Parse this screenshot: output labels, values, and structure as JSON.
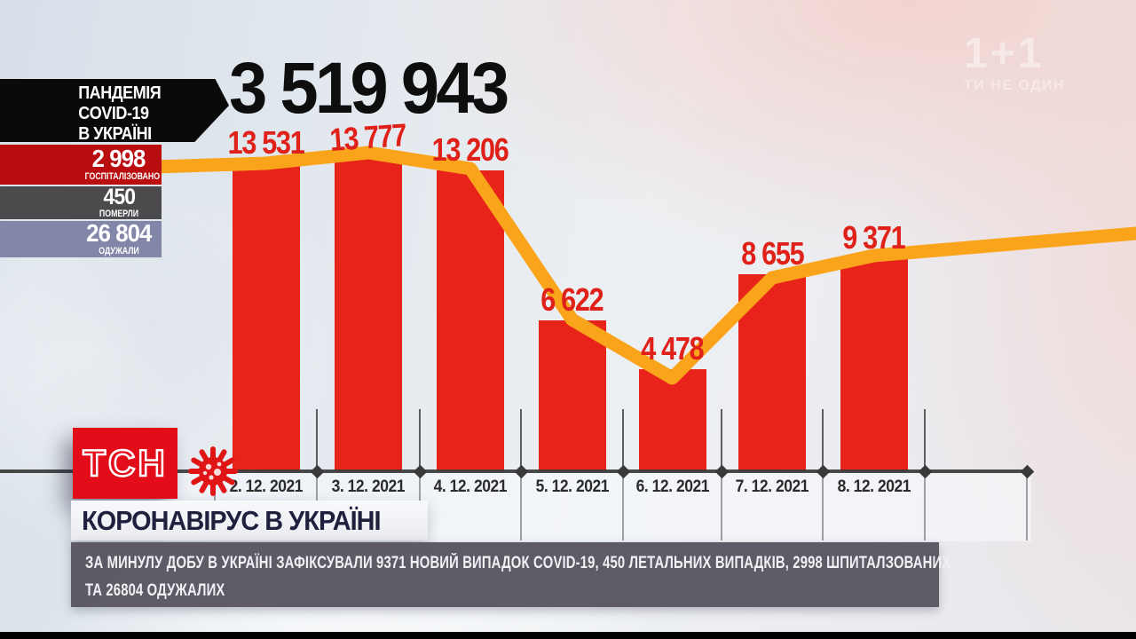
{
  "branding": {
    "tsn_logo": "ТСН",
    "channel_logo": "1+1",
    "channel_slogan": "ТИ НЕ ОДИН"
  },
  "info_panel": {
    "title_lines": [
      "ПАНДЕМІЯ",
      "COVID-19",
      "В УКРАЇНІ"
    ],
    "stats": [
      {
        "value": "2 998",
        "label": "ГОСПІТАЛІЗОВАНО",
        "color": "#b90d10"
      },
      {
        "value": "450",
        "label": "ПОМЕРЛИ",
        "color": "#4b4b4d"
      },
      {
        "value": "26 804",
        "label": "ОДУЖАЛИ",
        "color": "#8286a9"
      }
    ]
  },
  "headline": "КОРОНАВІРУС В УКРАЇНІ",
  "ticker": {
    "lines": [
      "ЗА МИНУЛУ ДОБУ В УКРАЇНІ ЗАФІКСУВАЛИ 9371 НОВИЙ ВИПАДОК COVID-19, 450 ЛЕТАЛЬНИХ ВИПАДКІВ, 2998 ШПИТАЛЗОВАНИХ",
      "ТА 26804 ОДУЖАЛИХ"
    ]
  },
  "chart_data": {
    "type": "bar",
    "title": "3 519 943",
    "categories": [
      "2. 12. 2021",
      "3. 12. 2021",
      "4. 12. 2021",
      "5. 12. 2021",
      "6. 12. 2021",
      "7. 12. 2021",
      "8. 12. 2021"
    ],
    "values": [
      13531,
      13777,
      13206,
      6622,
      4478,
      8655,
      9371
    ],
    "value_labels": [
      "13 531",
      "13 777",
      "13 206",
      "6 622",
      "4 478",
      "8 655",
      "9 371"
    ],
    "line_series": [
      13531,
      13777,
      13206,
      6622,
      4478,
      8655,
      9371
    ],
    "bar_color": "#e8231a",
    "line_color": "#f9a41b",
    "label_color": "#df2119",
    "axis_color": "#3a3a3a",
    "ylim": [
      0,
      14000
    ],
    "grid": "off",
    "legend": "none",
    "xlabel": "",
    "ylabel": ""
  }
}
